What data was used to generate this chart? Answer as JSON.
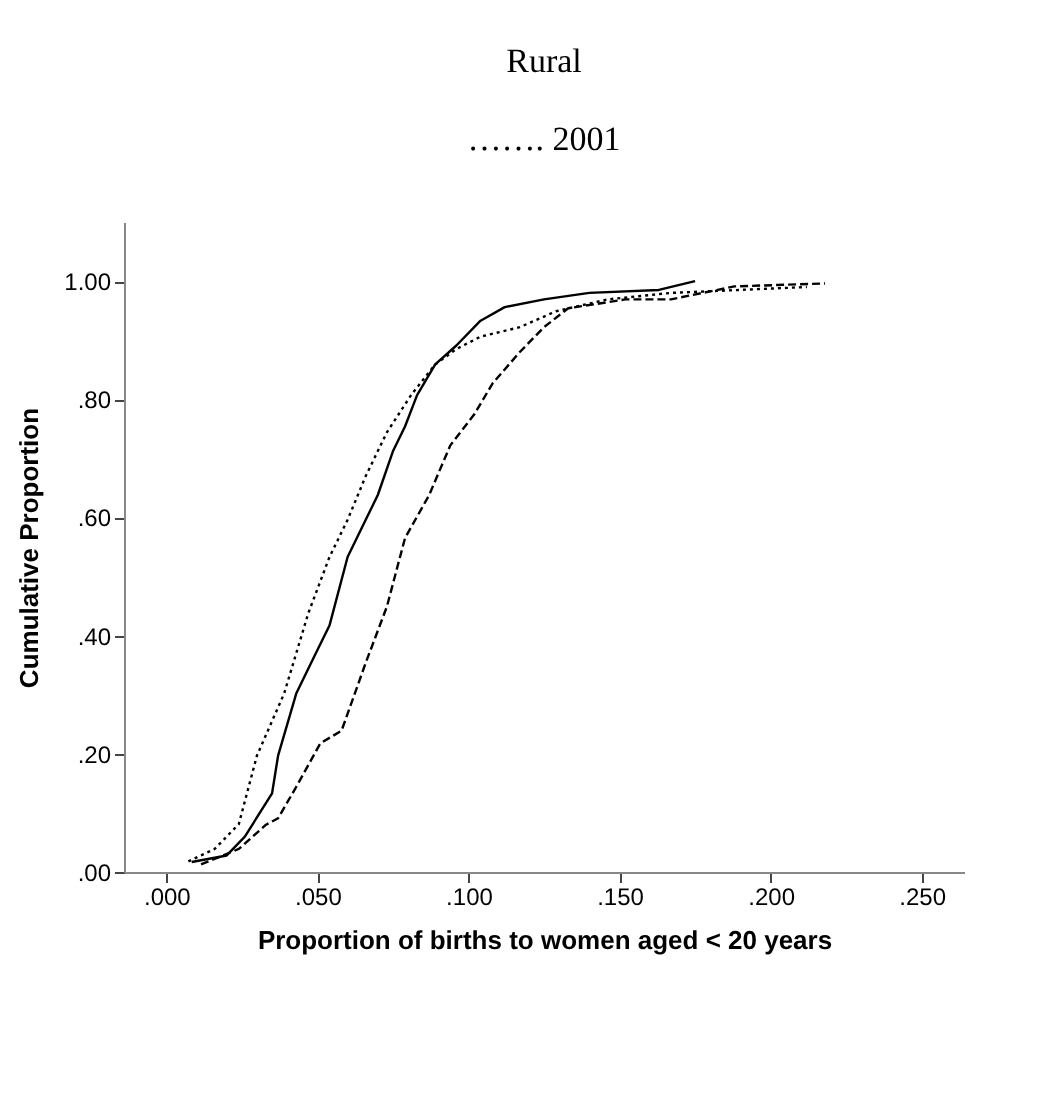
{
  "chart_data": {
    "type": "line",
    "title": "Rural",
    "subtitle": "……. 2001",
    "xlabel": "Proportion of births to women aged < 20 years",
    "ylabel": "Cumulative Proportion",
    "xlim": [
      -0.014,
      0.264
    ],
    "ylim": [
      0,
      1.1
    ],
    "xticks": [
      {
        "value": 0,
        "label": ".000"
      },
      {
        "value": 0.05,
        "label": ".050"
      },
      {
        "value": 0.1,
        "label": ".100"
      },
      {
        "value": 0.15,
        "label": ".150"
      },
      {
        "value": 0.2,
        "label": ".200"
      },
      {
        "value": 0.25,
        "label": ".250"
      }
    ],
    "yticks": [
      {
        "value": 0,
        "label": ".00"
      },
      {
        "value": 0.2,
        "label": ".20"
      },
      {
        "value": 0.4,
        "label": ".40"
      },
      {
        "value": 0.6,
        "label": ".60"
      },
      {
        "value": 0.8,
        "label": ".80"
      },
      {
        "value": 1,
        "label": "1.00"
      }
    ],
    "grid": false,
    "legend": false,
    "marker": "none",
    "series": [
      {
        "color": "#000000",
        "line_style": "solid",
        "x": [
          0.0084,
          0.02,
          0.026,
          0.035,
          0.037,
          0.043,
          0.049,
          0.054,
          0.06,
          0.066,
          0.07,
          0.075,
          0.079,
          0.083,
          0.089,
          0.096,
          0.104,
          0.112,
          0.125,
          0.14,
          0.163,
          0.175
        ],
        "values": [
          0.017,
          0.028,
          0.06,
          0.133,
          0.197,
          0.302,
          0.365,
          0.417,
          0.533,
          0.596,
          0.638,
          0.712,
          0.754,
          0.807,
          0.859,
          0.891,
          0.933,
          0.956,
          0.969,
          0.98,
          0.985,
          1.0
        ]
      },
      {
        "color": "#000000",
        "line_style": "dotted",
        "x": [
          0.0073,
          0.016,
          0.024,
          0.03,
          0.039,
          0.047,
          0.054,
          0.06,
          0.066,
          0.073,
          0.081,
          0.089,
          0.096,
          0.104,
          0.117,
          0.129,
          0.146,
          0.167,
          0.212
        ],
        "values": [
          0.018,
          0.039,
          0.081,
          0.197,
          0.302,
          0.438,
          0.533,
          0.596,
          0.67,
          0.744,
          0.807,
          0.859,
          0.885,
          0.906,
          0.922,
          0.949,
          0.969,
          0.98,
          0.99
        ]
      },
      {
        "color": "#000000",
        "line_style": "dashed",
        "x": [
          0.0115,
          0.024,
          0.033,
          0.037,
          0.043,
          0.051,
          0.058,
          0.066,
          0.073,
          0.079,
          0.087,
          0.094,
          0.102,
          0.108,
          0.117,
          0.125,
          0.133,
          0.152,
          0.167,
          0.188,
          0.218
        ],
        "values": [
          0.013,
          0.039,
          0.08,
          0.091,
          0.144,
          0.218,
          0.239,
          0.354,
          0.449,
          0.565,
          0.638,
          0.722,
          0.775,
          0.827,
          0.88,
          0.922,
          0.954,
          0.969,
          0.969,
          0.991,
          0.996
        ]
      }
    ]
  }
}
